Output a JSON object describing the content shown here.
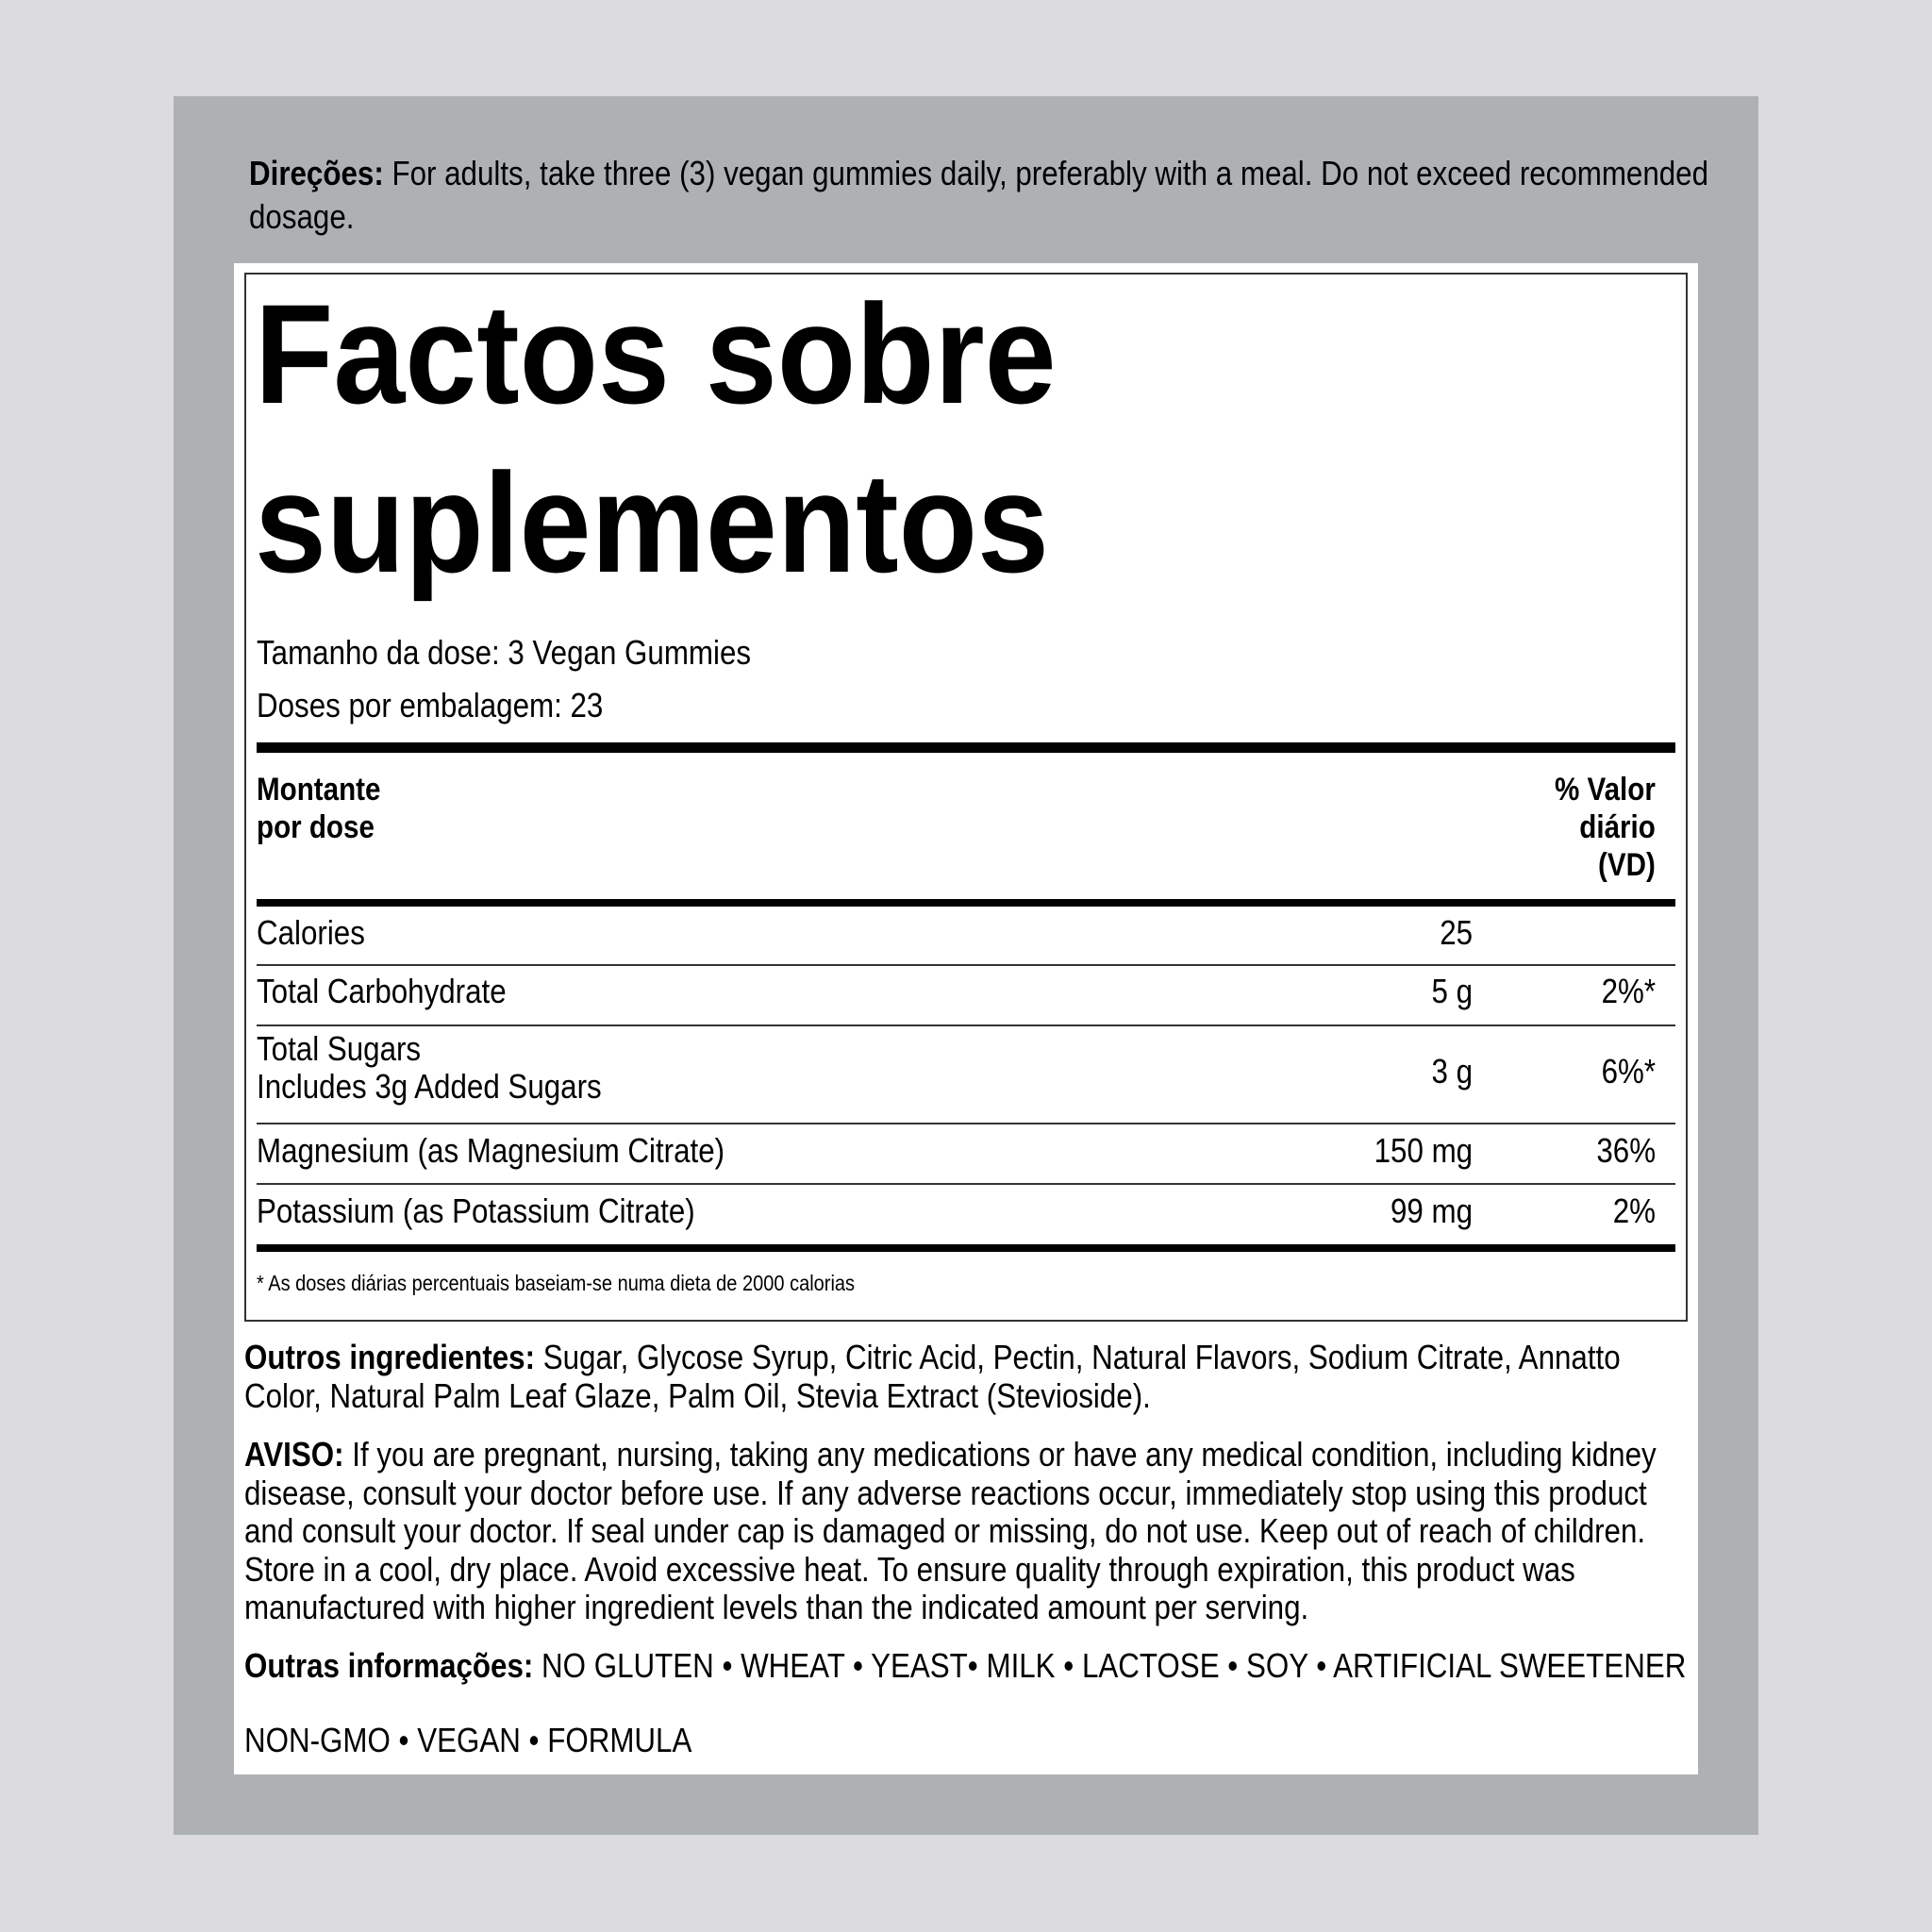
{
  "directions": {
    "label": "Direções:",
    "text": " For adults, take three (3) vegan gummies daily, preferably with a meal. Do not exceed recommended dosage."
  },
  "facts": {
    "title_line1": "Factos sobre",
    "title_line2": "suplementos",
    "serving_size": "Tamanho da dose: 3 Vegan Gummies",
    "servings_per_container": "Doses por embalagem: 23",
    "header_amount": [
      "Montante",
      "por dose"
    ],
    "header_dv": [
      "% Valor",
      "diário",
      "(VD)"
    ],
    "rows": [
      {
        "name": "Calories",
        "amount": "25",
        "dv": ""
      },
      {
        "name": "Total Carbohydrate",
        "amount": "5 g",
        "dv": "2%*"
      },
      {
        "name": "Total Sugars",
        "sub": "Includes 3g Added Sugars",
        "amount": "3 g",
        "dv": "6%*"
      },
      {
        "name": "Magnesium (as Magnesium Citrate)",
        "amount": "150 mg",
        "dv": "36%"
      },
      {
        "name": "Potassium (as Potassium Citrate)",
        "amount": "99 mg",
        "dv": "2%"
      }
    ],
    "footnote": "* As doses diárias percentuais baseiam-se numa dieta de 2000 calorias"
  },
  "other_ingredients": {
    "label": "Outros ingredientes:",
    "text": " Sugar, Glycose Syrup, Citric Acid, Pectin, Natural Flavors, Sodium Citrate, Annatto Color, Natural Palm Leaf Glaze, Palm Oil, Stevia Extract (Stevioside)."
  },
  "warning": {
    "label": "AVISO:",
    "text": " If you are pregnant, nursing, taking any medications or have any medical condition, including kidney disease, consult your doctor before use. If any adverse reactions occur, immediately stop using this product and consult your doctor. If seal under cap is damaged or missing, do not use. Keep out of reach of children. Store in a cool, dry place. Avoid excessive heat. To ensure quality through expiration, this product was manufactured with higher ingredient levels than the indicated amount per serving."
  },
  "other_info": {
    "label": "Outras informações:",
    "text": " NO GLUTEN • WHEAT • YEAST• MILK • LACTOSE • SOY • ARTIFICIAL SWEETENER",
    "line2": "NON-GMO • VEGAN • FORMULA"
  },
  "colors": {
    "background": "#dcdbdf",
    "panel": "#adb1b4",
    "label": "#ffffff"
  }
}
